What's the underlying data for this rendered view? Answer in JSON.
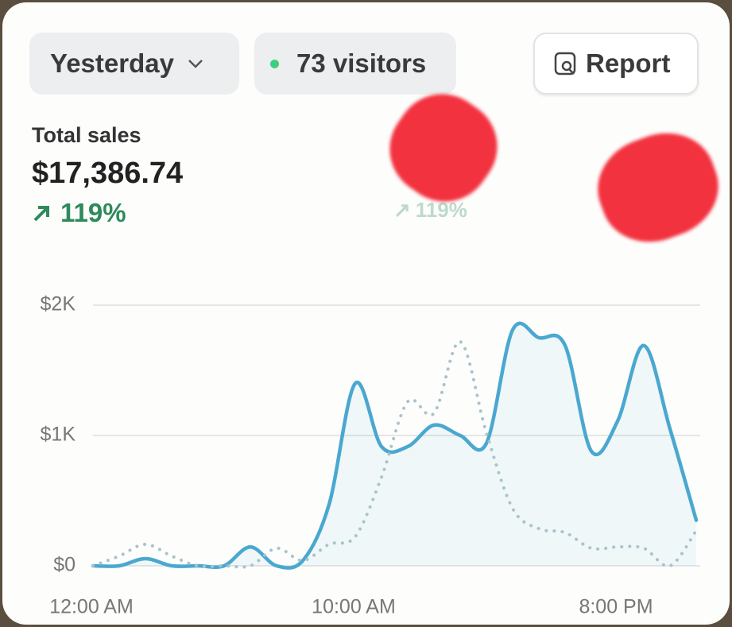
{
  "header": {
    "date_filter": "Yesterday",
    "visitors": "73 visitors",
    "report": "Report"
  },
  "metrics": [
    {
      "label": "Total sales",
      "value": "$17,386.74",
      "change": "119%"
    },
    {
      "change": "119%"
    }
  ],
  "chart_data": {
    "type": "line",
    "x": [
      0,
      1,
      2,
      3,
      4,
      5,
      6,
      7,
      8,
      9,
      10,
      11,
      12,
      13,
      14,
      15,
      16,
      17,
      18,
      19,
      20,
      21,
      22,
      23
    ],
    "series": [
      {
        "color": "#4aa8d0",
        "style": "solid",
        "area": true,
        "values": [
          0,
          0,
          55,
          0,
          0,
          0,
          145,
          0,
          40,
          470,
          1400,
          915,
          915,
          1080,
          1000,
          940,
          1810,
          1750,
          1690,
          880,
          1110,
          1690,
          1050,
          350
        ]
      },
      {
        "color": "#a9c3cb",
        "style": "dotted",
        "area": false,
        "values": [
          0,
          75,
          165,
          75,
          0,
          0,
          0,
          135,
          40,
          165,
          225,
          680,
          1260,
          1170,
          1720,
          1020,
          440,
          285,
          255,
          135,
          145,
          135,
          0,
          270
        ]
      }
    ],
    "xlim": [
      0,
      23
    ],
    "ylim": [
      0,
      2000
    ],
    "xticks": [
      {
        "value": 0,
        "label": "12:00 AM"
      },
      {
        "value": 10,
        "label": "10:00 AM"
      },
      {
        "value": 20,
        "label": "8:00 PM"
      }
    ],
    "yticks": [
      {
        "value": 0,
        "label": "$0"
      },
      {
        "value": 1000,
        "label": "$1K"
      },
      {
        "value": 2000,
        "label": "$2K"
      }
    ],
    "grid": true
  }
}
